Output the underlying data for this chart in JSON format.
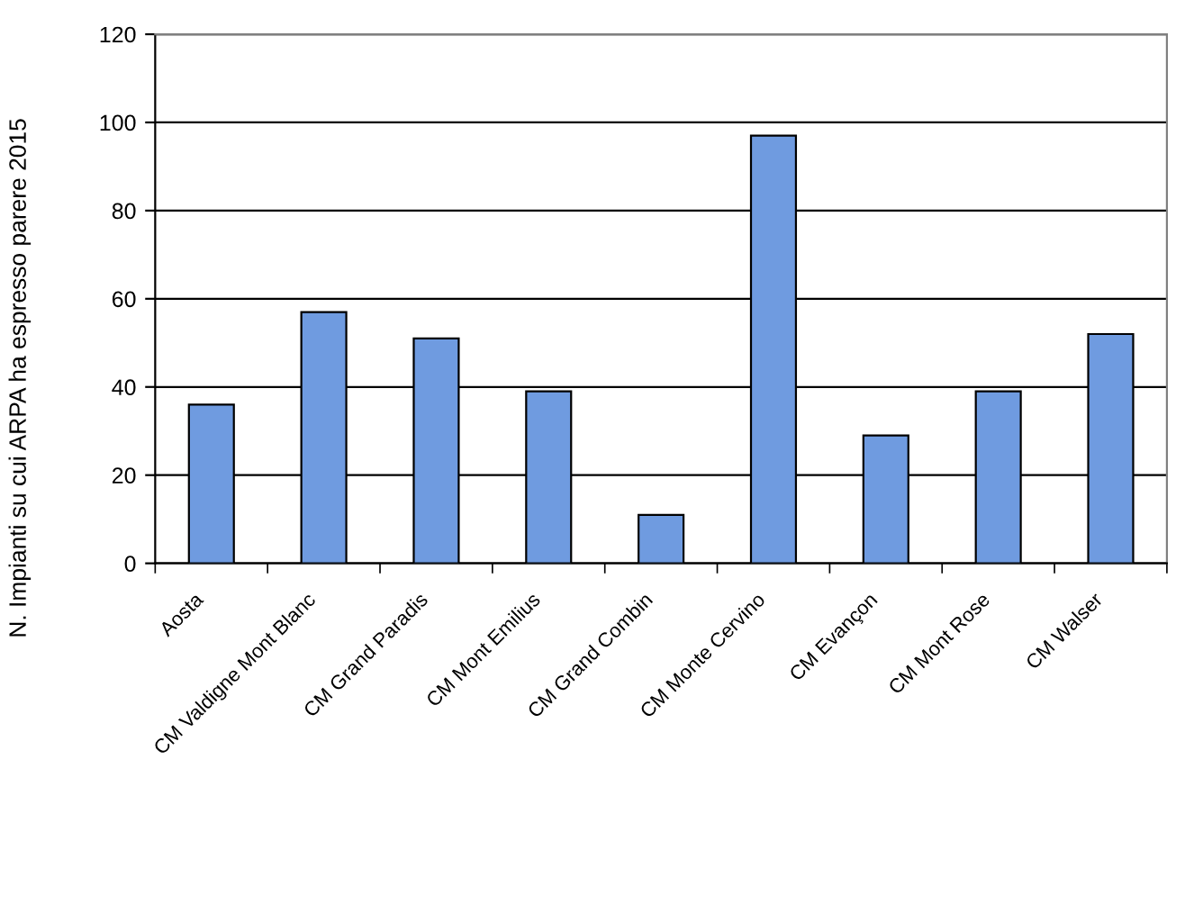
{
  "chart_data": {
    "type": "bar",
    "ylabel": "N. Impianti su cui ARPA ha espresso parere 2015",
    "categories": [
      "Aosta",
      "CM Valdigne Mont Blanc",
      "CM Grand Paradis",
      "CM Mont Emilius",
      "CM Grand Combin",
      "CM Monte Cervino",
      "CM Evançon",
      "CM Mont Rose",
      "CM Walser"
    ],
    "values": [
      36,
      57,
      51,
      39,
      11,
      97,
      29,
      39,
      52
    ],
    "color": "#6f9be0",
    "ylim": [
      0,
      120
    ],
    "yticks": [
      0,
      20,
      40,
      60,
      80,
      100,
      120
    ],
    "grid": "y"
  }
}
